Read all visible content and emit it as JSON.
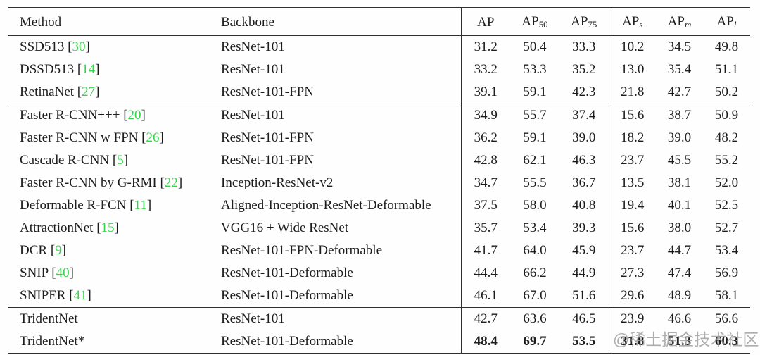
{
  "colors": {
    "text": "#1c1c1c",
    "rule": "#2e2e2e",
    "ref_green": "#38d24a",
    "watermark_gray": "#969696",
    "background": "#fefefe"
  },
  "citation": {
    "open": " [",
    "close": "]"
  },
  "watermark": {
    "text": "@稀土掘金技术社区"
  },
  "table": {
    "headers": {
      "method": "Method",
      "backbone": "Backbone",
      "metrics": [
        {
          "base": "AP",
          "sub": ""
        },
        {
          "base": "AP",
          "sub": "50"
        },
        {
          "base": "AP",
          "sub": "75"
        },
        {
          "base": "AP",
          "sub": "s"
        },
        {
          "base": "AP",
          "sub": "m"
        },
        {
          "base": "AP",
          "sub": "l"
        }
      ]
    },
    "groups": [
      {
        "rows": [
          {
            "method": "SSD513",
            "ref": "30",
            "backbone": "ResNet-101",
            "values": [
              "31.2",
              "50.4",
              "33.3",
              "10.2",
              "34.5",
              "49.8"
            ],
            "bold": false
          },
          {
            "method": "DSSD513",
            "ref": "14",
            "backbone": "ResNet-101",
            "values": [
              "33.2",
              "53.3",
              "35.2",
              "13.0",
              "35.4",
              "51.1"
            ],
            "bold": false
          },
          {
            "method": "RetinaNet",
            "ref": "27",
            "backbone": "ResNet-101-FPN",
            "values": [
              "39.1",
              "59.1",
              "42.3",
              "21.8",
              "42.7",
              "50.2"
            ],
            "bold": false
          }
        ]
      },
      {
        "rows": [
          {
            "method": "Faster R-CNN+++",
            "ref": "20",
            "backbone": "ResNet-101",
            "values": [
              "34.9",
              "55.7",
              "37.4",
              "15.6",
              "38.7",
              "50.9"
            ],
            "bold": false
          },
          {
            "method": "Faster R-CNN w FPN",
            "ref": "26",
            "backbone": "ResNet-101-FPN",
            "values": [
              "36.2",
              "59.1",
              "39.0",
              "18.2",
              "39.0",
              "48.2"
            ],
            "bold": false
          },
          {
            "method": "Cascade R-CNN",
            "ref": "5",
            "backbone": "ResNet-101-FPN",
            "values": [
              "42.8",
              "62.1",
              "46.3",
              "23.7",
              "45.5",
              "55.2"
            ],
            "bold": false
          },
          {
            "method": "Faster R-CNN by G-RMI",
            "ref": "22",
            "backbone": "Inception-ResNet-v2",
            "values": [
              "34.7",
              "55.5",
              "36.7",
              "13.5",
              "38.1",
              "52.0"
            ],
            "bold": false
          },
          {
            "method": "Deformable R-FCN",
            "ref": "11",
            "backbone": "Aligned-Inception-ResNet-Deformable",
            "values": [
              "37.5",
              "58.0",
              "40.8",
              "19.4",
              "40.1",
              "52.5"
            ],
            "bold": false
          },
          {
            "method": "AttractionNet",
            "ref": "15",
            "backbone": "VGG16 + Wide ResNet",
            "values": [
              "35.7",
              "53.4",
              "39.3",
              "15.6",
              "38.0",
              "52.7"
            ],
            "bold": false
          },
          {
            "method": "DCR",
            "ref": "9",
            "backbone": "ResNet-101-FPN-Deformable",
            "values": [
              "41.7",
              "64.0",
              "45.9",
              "23.7",
              "44.7",
              "53.4"
            ],
            "bold": false
          },
          {
            "method": "SNIP",
            "ref": "40",
            "backbone": "ResNet-101-Deformable",
            "values": [
              "44.4",
              "66.2",
              "44.9",
              "27.3",
              "47.4",
              "56.9"
            ],
            "bold": false
          },
          {
            "method": "SNIPER",
            "ref": "41",
            "backbone": "ResNet-101-Deformable",
            "values": [
              "46.1",
              "67.0",
              "51.6",
              "29.6",
              "48.9",
              "58.1"
            ],
            "bold": false
          }
        ]
      },
      {
        "rows": [
          {
            "method": "TridentNet",
            "ref": null,
            "backbone": "ResNet-101",
            "values": [
              "42.7",
              "63.6",
              "46.5",
              "23.9",
              "46.6",
              "56.6"
            ],
            "bold": false
          },
          {
            "method": "TridentNet*",
            "ref": null,
            "backbone": "ResNet-101-Deformable",
            "values": [
              "48.4",
              "69.7",
              "53.5",
              "31.8",
              "51.3",
              "60.3"
            ],
            "bold": true
          }
        ]
      }
    ]
  }
}
